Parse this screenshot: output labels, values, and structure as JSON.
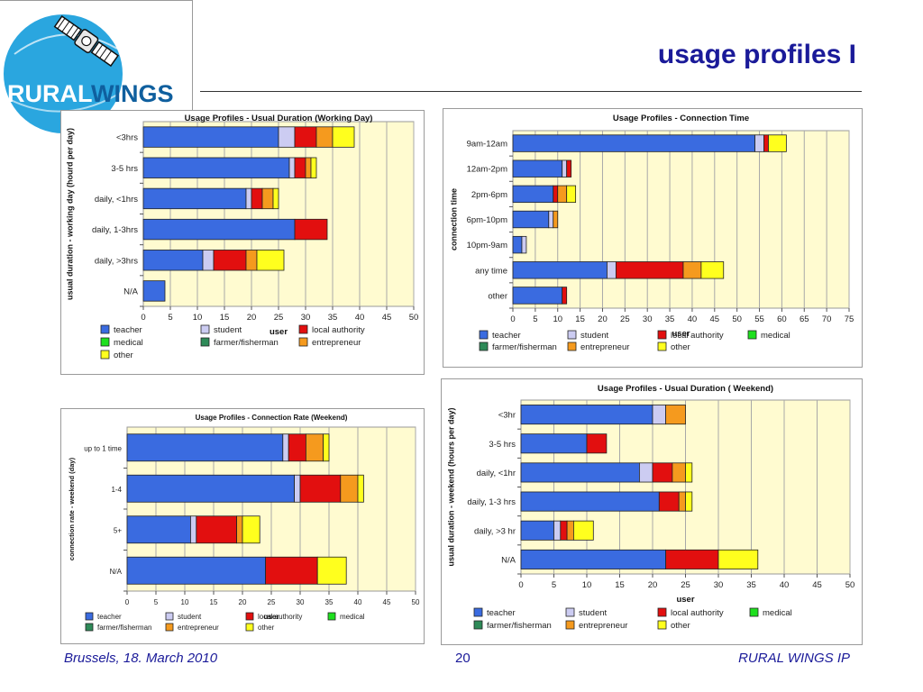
{
  "slide": {
    "title": "usage profiles I",
    "logo_text": "RURALWINGS",
    "footer_left": "Brussels, 18. March 2010",
    "page_number": "20",
    "footer_right": "RURAL WINGS IP"
  },
  "legend_colors": {
    "teacher": "#3a6be0",
    "student": "#ccccf2",
    "local authority": "#e20f0f",
    "medical": "#1ee01e",
    "farmer/fisherman": "#2e8a58",
    "entrepreneur": "#f59a1e",
    "other": "#ffff1e"
  },
  "chart_data": [
    {
      "type": "bar",
      "orientation": "horizontal",
      "stacked": true,
      "title": "Usage Profiles - Usual Duration (Working Day)",
      "xlabel": "user",
      "ylabel": "usual duration - working day (hourd per day)",
      "xlim": [
        0,
        50
      ],
      "xticks": [
        0,
        5,
        10,
        15,
        20,
        25,
        30,
        35,
        40,
        45,
        50
      ],
      "categories": [
        "<3hrs",
        "3-5 hrs",
        "daily, <1hrs",
        "daily, 1-3hrs",
        "daily, >3hrs",
        "N/A"
      ],
      "series": [
        {
          "name": "teacher",
          "values": [
            25,
            27,
            19,
            28,
            11,
            4
          ]
        },
        {
          "name": "student",
          "values": [
            3,
            1,
            1,
            0,
            2,
            0
          ]
        },
        {
          "name": "local authority",
          "values": [
            4,
            2,
            2,
            6,
            6,
            0
          ]
        },
        {
          "name": "medical",
          "values": [
            0,
            0,
            0,
            0,
            0,
            0
          ]
        },
        {
          "name": "farmer/fisherman",
          "values": [
            0,
            0,
            0,
            0,
            0,
            0
          ]
        },
        {
          "name": "entrepreneur",
          "values": [
            3,
            1,
            2,
            0,
            2,
            0
          ]
        },
        {
          "name": "other",
          "values": [
            4,
            1,
            1,
            0,
            5,
            0
          ]
        }
      ],
      "legend": [
        "teacher",
        "student",
        "local authority",
        "medical",
        "farmer/fisherman",
        "entrepreneur",
        "other"
      ],
      "legend_position": "bottom",
      "grid": true
    },
    {
      "type": "bar",
      "orientation": "horizontal",
      "stacked": true,
      "title": "Usage Profiles - Connection Time",
      "xlabel": "user",
      "ylabel": "connection time",
      "xlim": [
        0,
        75
      ],
      "xticks": [
        0,
        5,
        10,
        15,
        20,
        25,
        30,
        35,
        40,
        45,
        50,
        55,
        60,
        65,
        70,
        75
      ],
      "categories": [
        "9am-12am",
        "12am-2pm",
        "2pm-6pm",
        "6pm-10pm",
        "10pm-9am",
        "any time",
        "other"
      ],
      "series": [
        {
          "name": "teacher",
          "values": [
            54,
            11,
            9,
            8,
            2,
            21,
            11
          ]
        },
        {
          "name": "student",
          "values": [
            2,
            1,
            0,
            1,
            1,
            2,
            0
          ]
        },
        {
          "name": "local authority",
          "values": [
            1,
            1,
            1,
            0,
            0,
            15,
            1
          ]
        },
        {
          "name": "medical",
          "values": [
            0,
            0,
            0,
            0,
            0,
            0,
            0
          ]
        },
        {
          "name": "farmer/fisherman",
          "values": [
            0,
            0,
            0,
            0,
            0,
            0,
            0
          ]
        },
        {
          "name": "entrepreneur",
          "values": [
            0,
            0,
            2,
            1,
            0,
            4,
            0
          ]
        },
        {
          "name": "other",
          "values": [
            4,
            0,
            2,
            0,
            0,
            5,
            0
          ]
        }
      ],
      "legend": [
        "teacher",
        "student",
        "local authority",
        "medical",
        "farmer/fisherman",
        "entrepreneur",
        "other"
      ],
      "legend_position": "bottom",
      "grid": true
    },
    {
      "type": "bar",
      "orientation": "horizontal",
      "stacked": true,
      "title": "Usage Profiles - Connection Rate (Weekend)",
      "xlabel": "user",
      "ylabel": "connection rate - weekend (day)",
      "xlim": [
        0,
        50
      ],
      "xticks": [
        0,
        5,
        10,
        15,
        20,
        25,
        30,
        35,
        40,
        45,
        50
      ],
      "categories": [
        "up to 1 time",
        "1-4",
        "5+",
        "N/A"
      ],
      "series": [
        {
          "name": "teacher",
          "values": [
            27,
            29,
            11,
            24
          ]
        },
        {
          "name": "student",
          "values": [
            1,
            1,
            1,
            0
          ]
        },
        {
          "name": "local authority",
          "values": [
            3,
            7,
            7,
            9
          ]
        },
        {
          "name": "medical",
          "values": [
            0,
            0,
            0,
            0
          ]
        },
        {
          "name": "farmer/fisherman",
          "values": [
            0,
            0,
            0,
            0
          ]
        },
        {
          "name": "entrepreneur",
          "values": [
            3,
            3,
            1,
            0
          ]
        },
        {
          "name": "other",
          "values": [
            1,
            1,
            3,
            5
          ]
        }
      ],
      "legend": [
        "teacher",
        "student",
        "local authority",
        "medical",
        "farmer/fisherman",
        "entrepreneur",
        "other"
      ],
      "legend_position": "bottom",
      "grid": true
    },
    {
      "type": "bar",
      "orientation": "horizontal",
      "stacked": true,
      "title": "Usage Profiles - Usual Duration ( Weekend)",
      "xlabel": "user",
      "ylabel": "usual duration - weekend (hours per day)",
      "xlim": [
        0,
        50
      ],
      "xticks": [
        0,
        5,
        10,
        15,
        20,
        25,
        30,
        35,
        40,
        45,
        50
      ],
      "categories": [
        "<3hr",
        "3-5 hrs",
        "daily, <1hr",
        "daily, 1-3 hrs",
        "daily, >3 hr",
        "N/A"
      ],
      "series": [
        {
          "name": "teacher",
          "values": [
            20,
            10,
            18,
            21,
            5,
            22
          ]
        },
        {
          "name": "student",
          "values": [
            2,
            0,
            2,
            0,
            1,
            0
          ]
        },
        {
          "name": "local authority",
          "values": [
            0,
            3,
            3,
            3,
            1,
            8
          ]
        },
        {
          "name": "medical",
          "values": [
            0,
            0,
            0,
            0,
            0,
            0
          ]
        },
        {
          "name": "farmer/fisherman",
          "values": [
            0,
            0,
            0,
            0,
            0,
            0
          ]
        },
        {
          "name": "entrepreneur",
          "values": [
            3,
            0,
            2,
            1,
            1,
            0
          ]
        },
        {
          "name": "other",
          "values": [
            0,
            0,
            1,
            1,
            3,
            6
          ]
        }
      ],
      "legend": [
        "teacher",
        "student",
        "local authority",
        "medical",
        "farmer/fisherman",
        "entrepreneur",
        "other"
      ],
      "legend_position": "bottom",
      "grid": true
    }
  ]
}
